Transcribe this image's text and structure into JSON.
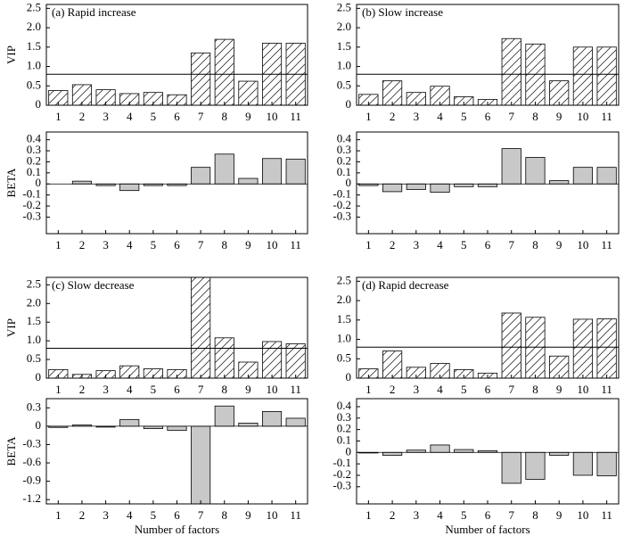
{
  "chart_data": [
    {
      "type": "bar",
      "title": "(a) Rapid increase",
      "y_label": "VIP",
      "categories": [
        "1",
        "2",
        "3",
        "4",
        "5",
        "6",
        "7",
        "8",
        "9",
        "10",
        "11"
      ],
      "values": [
        0.38,
        0.53,
        0.4,
        0.3,
        0.33,
        0.27,
        1.35,
        1.7,
        0.62,
        1.6,
        1.6
      ],
      "color": "#ffffff",
      "hatch": true,
      "threshold": 0.8,
      "ylim": [
        0,
        2.6
      ],
      "yticks": [
        0,
        0.5,
        {
          "value": 1,
          "label": "1.0"
        },
        1.5,
        {
          "value": 2,
          "label": "2.0"
        },
        2.5
      ]
    },
    {
      "type": "bar",
      "y_label": "BETA",
      "categories": [
        "1",
        "2",
        "3",
        "4",
        "5",
        "6",
        "7",
        "8",
        "9",
        "10",
        "11"
      ],
      "values": [
        0,
        0.025,
        -0.015,
        -0.06,
        -0.015,
        -0.015,
        0.15,
        0.27,
        0.05,
        0.23,
        0.225
      ],
      "color": "#c8c8c8",
      "ylim": [
        -0.45,
        0.47
      ],
      "yticks": [
        -0.3,
        -0.2,
        -0.1,
        0,
        0.1,
        0.2,
        0.3,
        0.4
      ]
    },
    {
      "type": "bar",
      "title": "(b) Slow increase",
      "categories": [
        "1",
        "2",
        "3",
        "4",
        "5",
        "6",
        "7",
        "8",
        "9",
        "10",
        "11"
      ],
      "values": [
        0.28,
        0.63,
        0.33,
        0.49,
        0.22,
        0.15,
        1.72,
        1.58,
        0.63,
        1.5,
        1.5
      ],
      "color": "#ffffff",
      "hatch": true,
      "threshold": 0.8,
      "ylim": [
        0,
        2.6
      ],
      "yticks": [
        0,
        0.5,
        {
          "value": 1,
          "label": "1.0"
        },
        1.5,
        {
          "value": 2,
          "label": "2.0"
        },
        2.5
      ]
    },
    {
      "type": "bar",
      "categories": [
        "1",
        "2",
        "3",
        "4",
        "5",
        "6",
        "7",
        "8",
        "9",
        "10",
        "11"
      ],
      "values": [
        -0.015,
        -0.07,
        -0.05,
        -0.075,
        -0.025,
        -0.025,
        0.32,
        0.24,
        0.03,
        0.15,
        0.15
      ],
      "color": "#c8c8c8",
      "ylim": [
        -0.45,
        0.47
      ],
      "yticks": [
        -0.3,
        -0.2,
        -0.1,
        0,
        0.1,
        0.2,
        0.3,
        0.4
      ]
    },
    {
      "type": "bar",
      "title": "(c) Slow decrease",
      "y_label": "VIP",
      "categories": [
        "1",
        "2",
        "3",
        "4",
        "5",
        "6",
        "7",
        "8",
        "9",
        "10",
        "11"
      ],
      "values": [
        0.23,
        0.1,
        0.2,
        0.33,
        0.25,
        0.23,
        2.7,
        1.08,
        0.43,
        0.98,
        0.92
      ],
      "color": "#ffffff",
      "hatch": true,
      "threshold": 0.8,
      "ylim": [
        0,
        2.7
      ],
      "yticks": [
        0,
        0.5,
        {
          "value": 1,
          "label": "1.0"
        },
        1.5,
        {
          "value": 2,
          "label": "2.0"
        },
        2.5
      ]
    },
    {
      "type": "bar",
      "y_label": "BETA",
      "x_label": "Number of factors",
      "categories": [
        "1",
        "2",
        "3",
        "4",
        "5",
        "6",
        "7",
        "8",
        "9",
        "10",
        "11"
      ],
      "values": [
        -0.02,
        0.02,
        -0.015,
        0.11,
        -0.04,
        -0.07,
        -1.27,
        0.33,
        0.05,
        0.24,
        0.13
      ],
      "color": "#c8c8c8",
      "ylim": [
        -1.27,
        0.45
      ],
      "yticks": [
        -1.2,
        -0.9,
        -0.6,
        -0.3,
        0,
        0.3
      ]
    },
    {
      "type": "bar",
      "title": "(d) Rapid decrease",
      "categories": [
        "1",
        "2",
        "3",
        "4",
        "5",
        "6",
        "7",
        "8",
        "9",
        "10",
        "11"
      ],
      "values": [
        0.24,
        0.7,
        0.28,
        0.38,
        0.22,
        0.13,
        1.68,
        1.57,
        0.57,
        1.52,
        1.53
      ],
      "color": "#ffffff",
      "hatch": true,
      "threshold": 0.8,
      "ylim": [
        0,
        2.6
      ],
      "yticks": [
        0,
        0.5,
        {
          "value": 1,
          "label": "1.0"
        },
        1.5,
        {
          "value": 2,
          "label": "2.0"
        },
        2.5
      ]
    },
    {
      "type": "bar",
      "x_label": "Number of factors",
      "categories": [
        "1",
        "2",
        "3",
        "4",
        "5",
        "6",
        "7",
        "8",
        "9",
        "10",
        "11"
      ],
      "values": [
        -0.005,
        -0.025,
        0.02,
        0.065,
        0.025,
        0.015,
        -0.27,
        -0.235,
        -0.025,
        -0.2,
        -0.205
      ],
      "color": "#c8c8c8",
      "ylim": [
        -0.45,
        0.47
      ],
      "yticks": [
        -0.3,
        -0.2,
        -0.1,
        0,
        0.1,
        0.2,
        0.3,
        0.4
      ]
    }
  ]
}
